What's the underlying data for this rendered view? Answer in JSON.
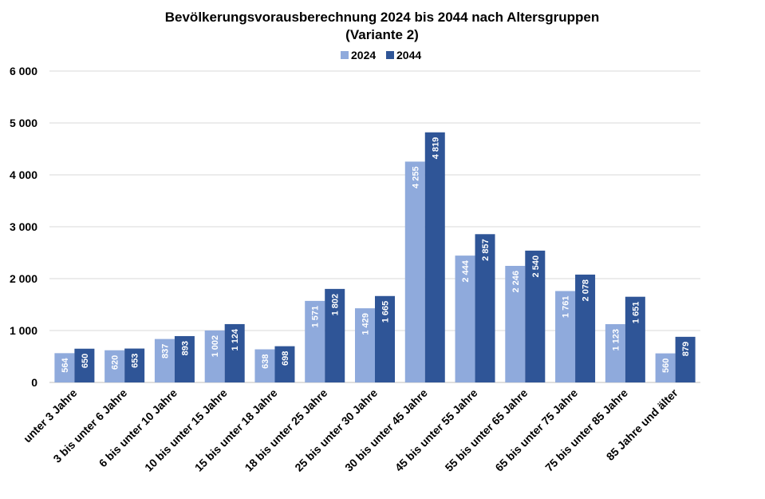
{
  "chart_data": {
    "type": "bar",
    "title": "Bevölkerungsvorausberechnung 2024 bis 2044 nach Altersgruppen",
    "subtitle": "(Variante 2)",
    "xlabel": "",
    "ylabel": "",
    "ylim": [
      0,
      6000
    ],
    "yticks": [
      0,
      1000,
      2000,
      3000,
      4000,
      5000,
      6000
    ],
    "ytick_labels": [
      "0",
      "1 000",
      "2 000",
      "3 000",
      "4 000",
      "5 000",
      "6 000"
    ],
    "grid": true,
    "legend_position": "top-center",
    "categories": [
      "unter 3 Jahre",
      "3 bis unter 6 Jahre",
      "6 bis unter 10 Jahre",
      "10 bis unter 15 Jahre",
      "15 bis unter 18 Jahre",
      "18 bis unter 25 Jahre",
      "25 bis unter 30 Jahre",
      "30 bis unter 45 Jahre",
      "45 bis unter 55 Jahre",
      "55 bis unter 65 Jahre",
      "65 bis unter 75 Jahre",
      "75 bis unter 85 Jahre",
      "85 Jahre und älter"
    ],
    "series": [
      {
        "name": "2024",
        "color": "#8faadc",
        "values": [
          564,
          620,
          837,
          1002,
          638,
          1571,
          1429,
          4255,
          2444,
          2246,
          1761,
          1123,
          560
        ],
        "labels": [
          "564",
          "620",
          "837",
          "1 002",
          "638",
          "1 571",
          "1 429",
          "4 255",
          "2 444",
          "2 246",
          "1 761",
          "1 123",
          "560"
        ]
      },
      {
        "name": "2044",
        "color": "#2f5597",
        "values": [
          650,
          653,
          893,
          1124,
          698,
          1802,
          1665,
          4819,
          2857,
          2540,
          2078,
          1651,
          879
        ],
        "labels": [
          "650",
          "653",
          "893",
          "1 124",
          "698",
          "1 802",
          "1 665",
          "4 819",
          "2 857",
          "2 540",
          "2 078",
          "1 651",
          "879"
        ]
      }
    ]
  }
}
